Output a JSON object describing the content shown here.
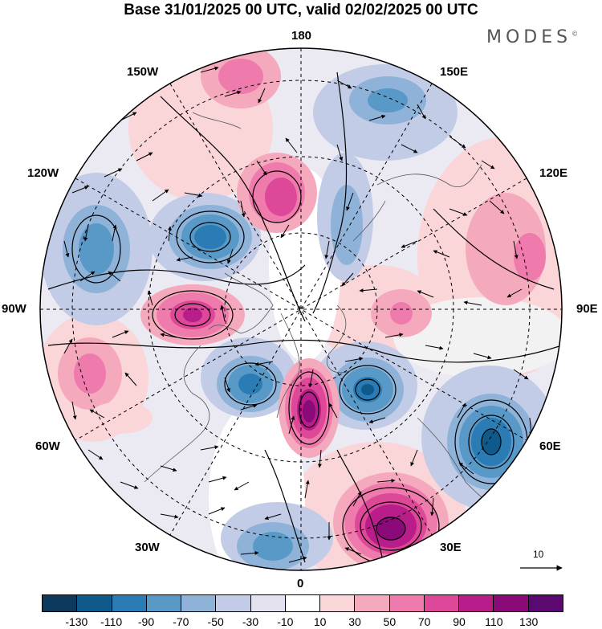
{
  "title": "Base 31/01/2025 00 UTC, valid 02/02/2025 00 UTC",
  "brand": "MODES",
  "brand_mark": "©",
  "longitudes": {
    "top": "180",
    "bottom": "0",
    "left": "90W",
    "right": "90E",
    "upper_left_1": "150W",
    "upper_left_2": "120W",
    "upper_right_1": "150E",
    "upper_right_2": "120E",
    "lower_left_1": "60W",
    "lower_left_2": "30W",
    "lower_right_1": "60E",
    "lower_right_2": "30E"
  },
  "reference_vector": {
    "value": "10"
  },
  "colorbar": {
    "colors": [
      "#0d3a5c",
      "#0f5a8a",
      "#2b7cb4",
      "#5899c8",
      "#8fb2d8",
      "#c2cce6",
      "#e4e2f0",
      "#ffffff",
      "#fbd6d9",
      "#f5a9bc",
      "#ef7aac",
      "#de4899",
      "#b81d89",
      "#8a0a7a",
      "#5a0a6e"
    ],
    "labels": [
      "-130",
      "-110",
      "-90",
      "-70",
      "-50",
      "-30",
      "-10",
      "10",
      "30",
      "50",
      "70",
      "90",
      "110",
      "130"
    ]
  }
}
